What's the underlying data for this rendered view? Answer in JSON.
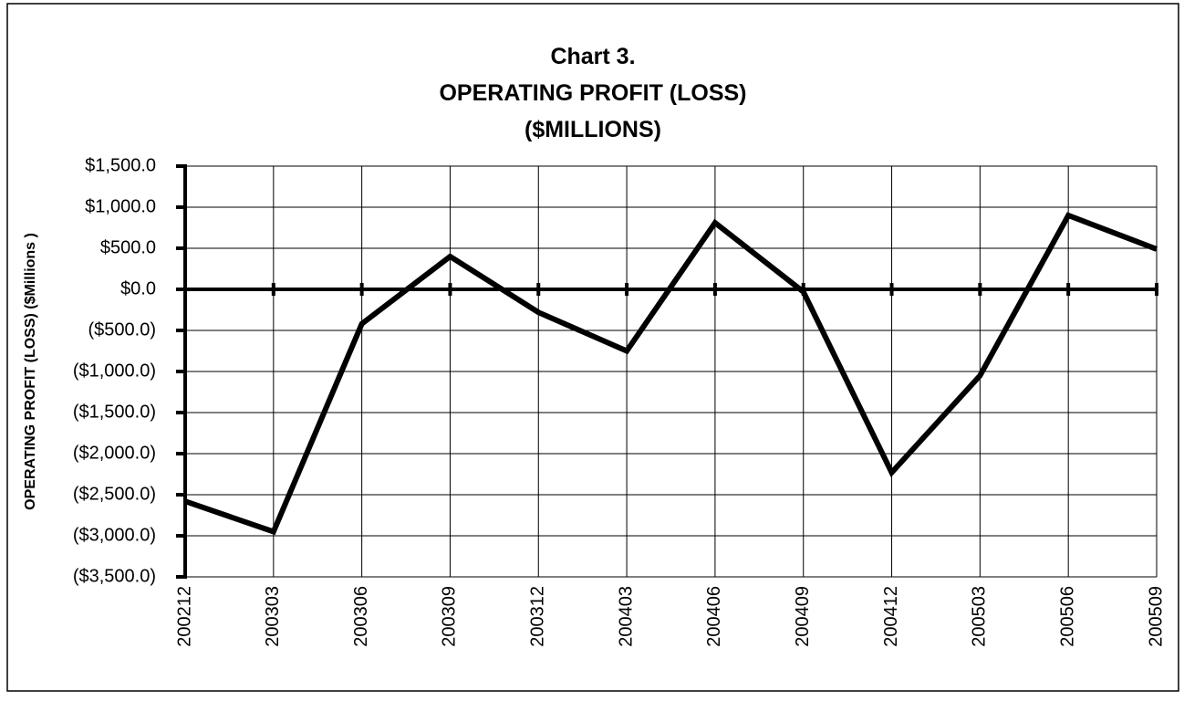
{
  "chart_data": {
    "type": "line",
    "title": [
      "Chart 3.",
      "OPERATING PROFIT (LOSS)",
      "($MILLIONS)"
    ],
    "y_label": "OPERATING PROFIT (LOSS) ($Millions )",
    "categories": [
      "200212",
      "200303",
      "200306",
      "200309",
      "200312",
      "200403",
      "200406",
      "200409",
      "200412",
      "200503",
      "200506",
      "200509"
    ],
    "values": [
      -2580,
      -2950,
      -420,
      400,
      -280,
      -750,
      810,
      -30,
      -2230,
      -1050,
      900,
      490
    ],
    "color": "#000000",
    "ylim": [
      -3500,
      1500
    ],
    "yticks": [
      {
        "value": 1500,
        "label": "$1,500.0"
      },
      {
        "value": 1000,
        "label": "$1,000.0"
      },
      {
        "value": 500,
        "label": "$500.0"
      },
      {
        "value": 0,
        "label": "$0.0"
      },
      {
        "value": -500,
        "label": "($500.0)"
      },
      {
        "value": -1000,
        "label": "($1,000.0)"
      },
      {
        "value": -1500,
        "label": "($1,500.0)"
      },
      {
        "value": -2000,
        "label": "($2,000.0)"
      },
      {
        "value": -2500,
        "label": "($2,500.0)"
      },
      {
        "value": -3000,
        "label": "($3,000.0)"
      },
      {
        "value": -3500,
        "label": "($3,500.0)"
      }
    ],
    "grid": true
  }
}
